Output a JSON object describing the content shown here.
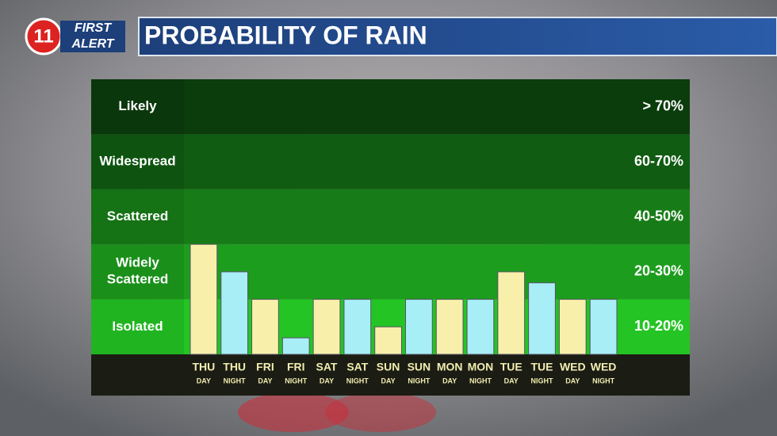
{
  "header": {
    "logo_number": "11",
    "logo_top": "FIRST",
    "logo_bottom": "ALERT",
    "title": "PROBABILITY OF RAIN"
  },
  "chart_data": {
    "type": "bar",
    "bands": [
      {
        "name": "Isolated",
        "label": "10-20%",
        "range": [
          10,
          20
        ],
        "color": "#24c424"
      },
      {
        "name": "Widely\nScattered",
        "label": "20-30%",
        "range": [
          20,
          30
        ],
        "color": "#1d9d1d"
      },
      {
        "name": "Scattered",
        "label": "40-50%",
        "range": [
          40,
          50
        ],
        "color": "#177c17"
      },
      {
        "name": "Widespread",
        "label": "60-70%",
        "range": [
          60,
          70
        ],
        "color": "#105c12"
      },
      {
        "name": "Likely",
        "label": "> 70%",
        "range": [
          70,
          100
        ],
        "color": "#0b3c0c"
      }
    ],
    "categories": [
      "THU",
      "THU",
      "FRI",
      "FRI",
      "SAT",
      "SAT",
      "SUN",
      "SUN",
      "MON",
      "MON",
      "TUE",
      "TUE",
      "WED",
      "WED"
    ],
    "periods": [
      "DAY",
      "NIGHT",
      "DAY",
      "NIGHT",
      "DAY",
      "NIGHT",
      "DAY",
      "NIGHT",
      "DAY",
      "NIGHT",
      "DAY",
      "NIGHT",
      "DAY",
      "NIGHT"
    ],
    "values": [
      30,
      25,
      20,
      13,
      20,
      20,
      15,
      20,
      20,
      20,
      25,
      23,
      20,
      20
    ],
    "colors": [
      "#f8f0aa",
      "#a8eef6",
      "#f8f0aa",
      "#a8eef6",
      "#f8f0aa",
      "#a8eef6",
      "#f8f0aa",
      "#a8eef6",
      "#f8f0aa",
      "#a8eef6",
      "#f8f0aa",
      "#a8eef6",
      "#f8f0aa",
      "#a8eef6"
    ]
  }
}
